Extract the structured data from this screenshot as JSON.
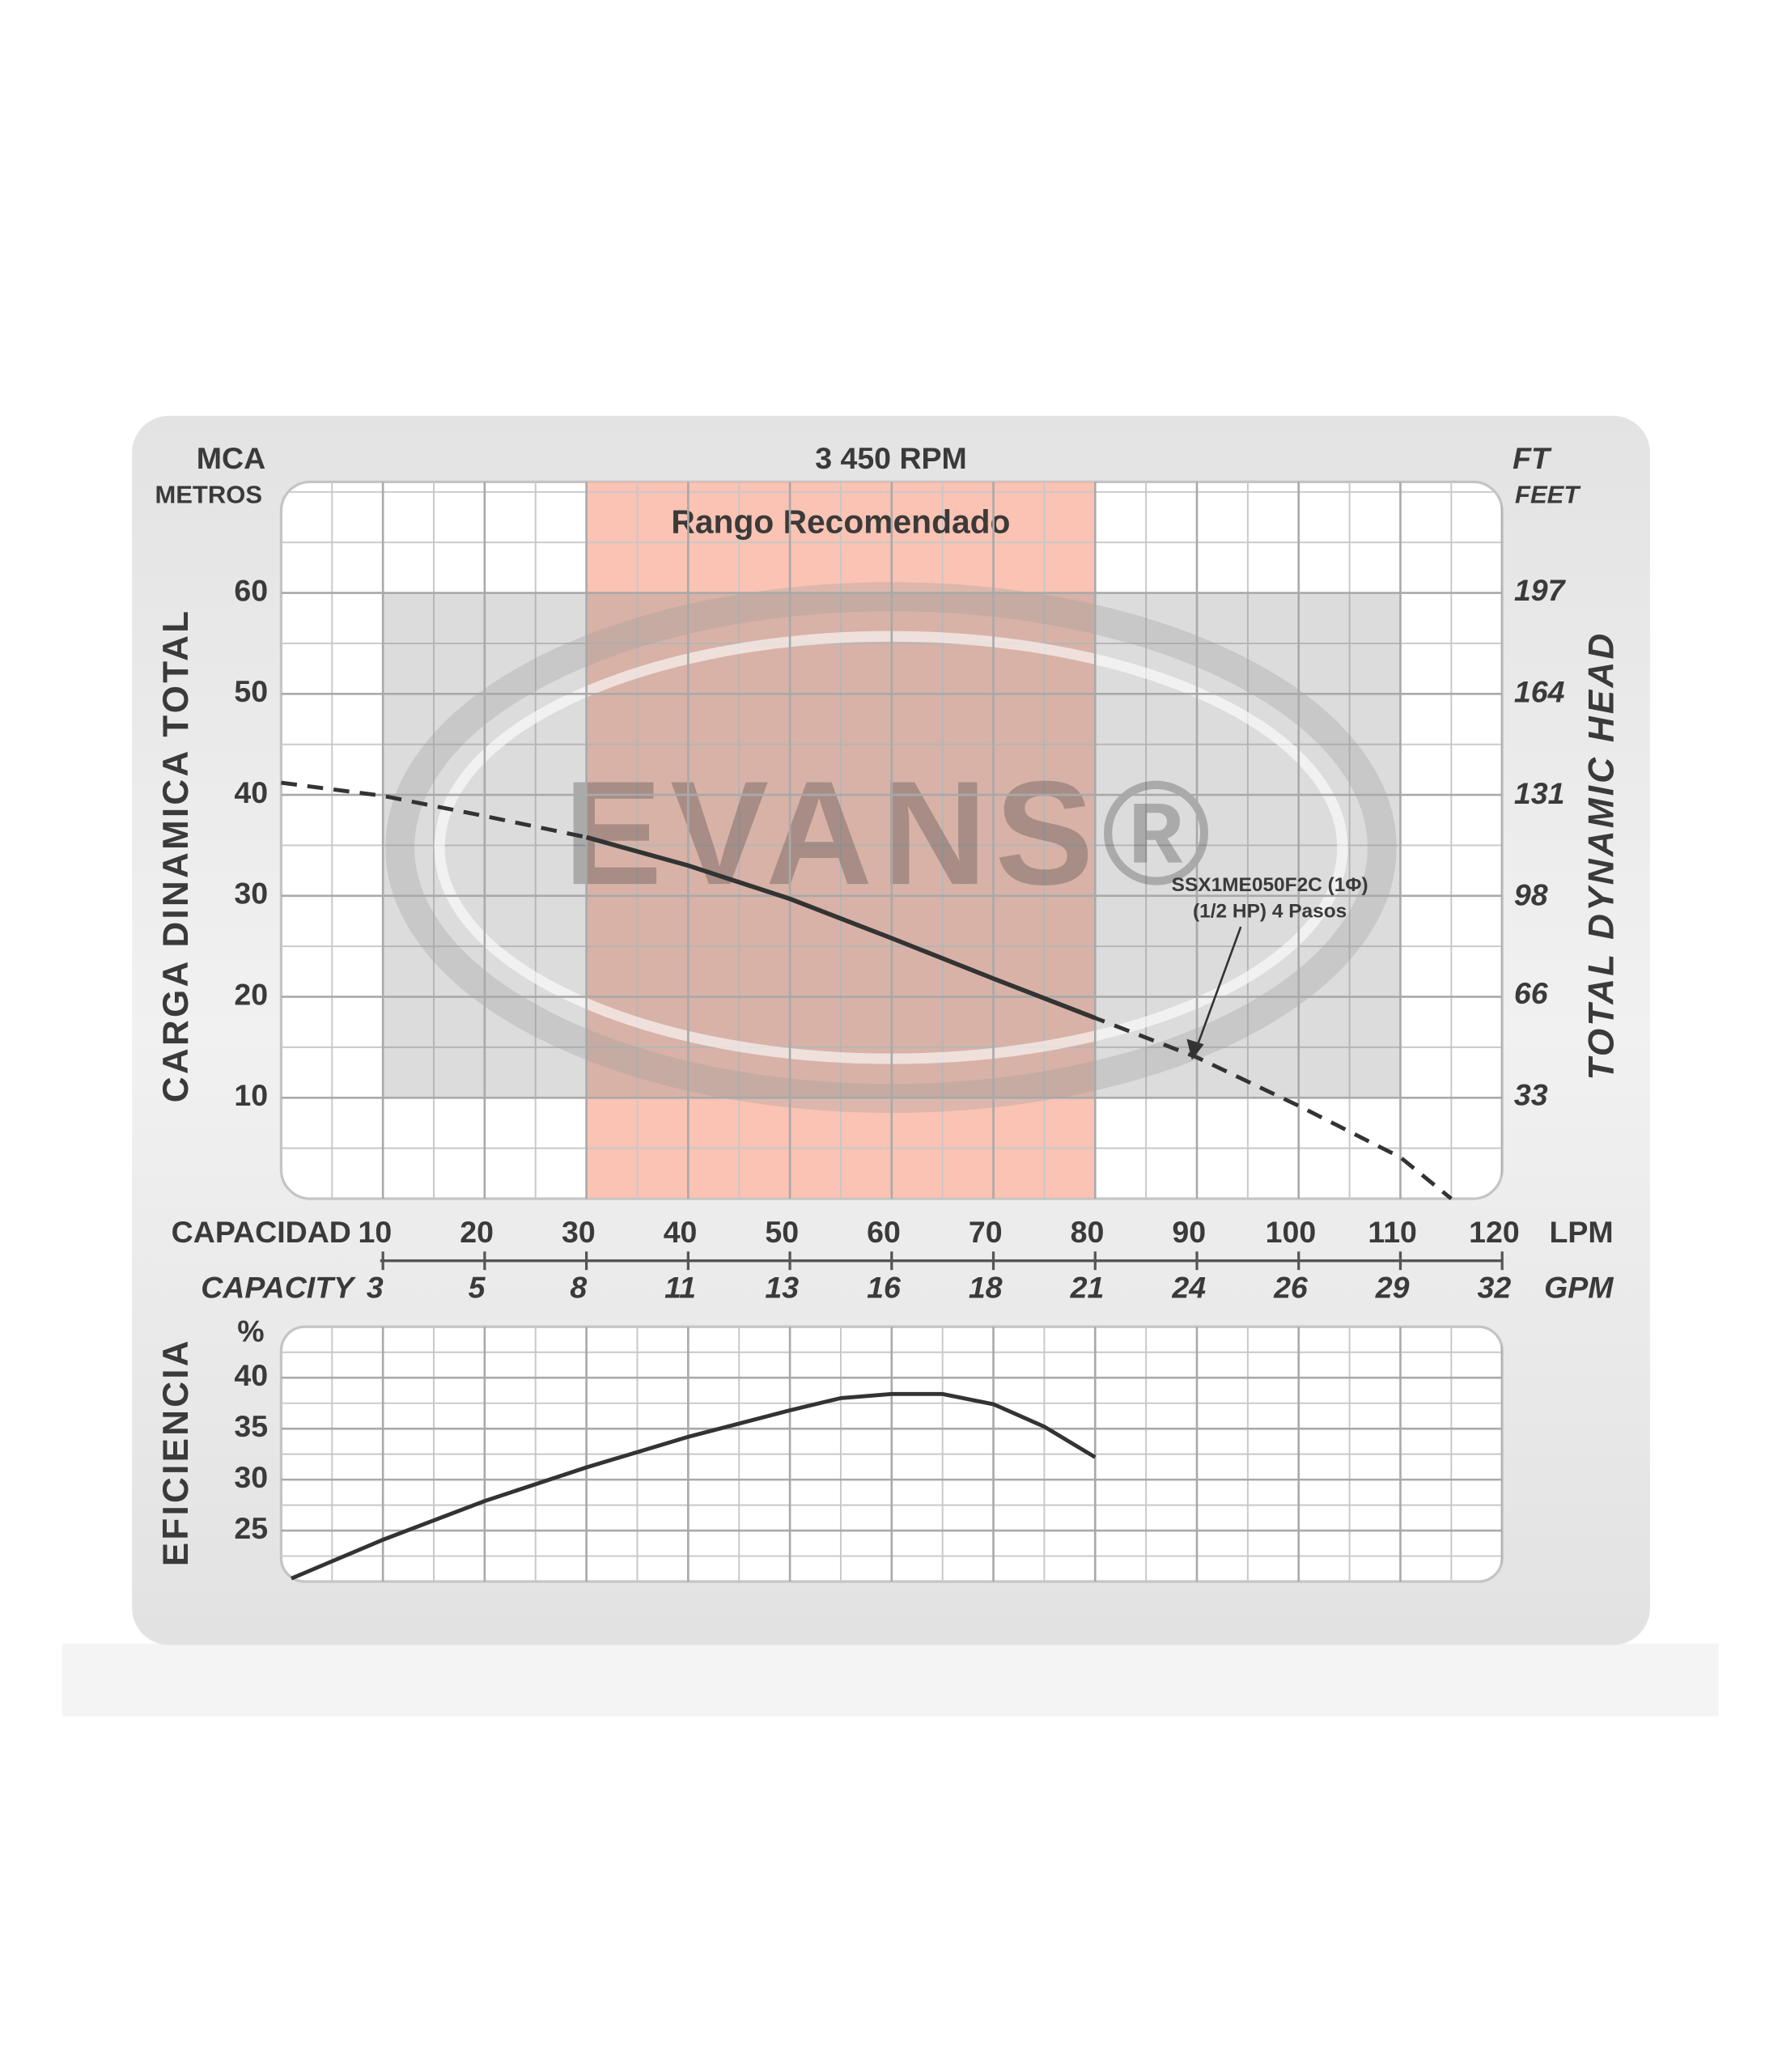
{
  "chart_data": [
    {
      "type": "line",
      "title": "3 450 RPM",
      "y_unit": "MCA",
      "y_unit_sub": "METROS",
      "y_label": "CARGA DINAMICA TOTAL",
      "y2_unit": "FT",
      "y2_unit_sub": "FEET",
      "y2_label": "TOTAL DYNAMIC HEAD",
      "x_label": "CAPACIDAD",
      "x_unit": "LPM",
      "x2_label": "CAPACITY",
      "x2_unit": "GPM",
      "xlim": [
        0,
        120
      ],
      "xticks": [
        10,
        20,
        30,
        40,
        50,
        60,
        70,
        80,
        90,
        100,
        110,
        120
      ],
      "x2ticks": [
        {
          "value": 10,
          "label": "3"
        },
        {
          "value": 20,
          "label": "5"
        },
        {
          "value": 30,
          "label": "8"
        },
        {
          "value": 40,
          "label": "11"
        },
        {
          "value": 50,
          "label": "13"
        },
        {
          "value": 60,
          "label": "16"
        },
        {
          "value": 70,
          "label": "18"
        },
        {
          "value": 80,
          "label": "21"
        },
        {
          "value": 90,
          "label": "24"
        },
        {
          "value": 100,
          "label": "26"
        },
        {
          "value": 110,
          "label": "29"
        },
        {
          "value": 120,
          "label": "32"
        }
      ],
      "ylim": [
        0,
        71
      ],
      "yticks": [
        10,
        20,
        30,
        40,
        50,
        60
      ],
      "y2lim": [
        0,
        233
      ],
      "y2ticks": [
        33,
        66,
        98,
        131,
        164,
        197
      ],
      "grid": true,
      "highlight": {
        "range": [
          30,
          80
        ],
        "label": "Rango Recomendado",
        "color": "#f9b9a6"
      },
      "watermark": "EVANS®",
      "x": [
        0,
        10,
        20,
        30,
        40,
        50,
        60,
        70,
        80,
        90,
        100,
        110,
        115
      ],
      "series": [
        {
          "name": "SSX1ME050F2C (1Φ)",
          "subtitle": "(1/2 HP)  4 Pasos",
          "color": "#333333",
          "values": [
            41.2,
            39.9,
            37.9,
            35.8,
            33,
            29.7,
            25.8,
            21.8,
            17.9,
            14,
            9.2,
            4.1,
            0
          ]
        }
      ]
    },
    {
      "type": "line",
      "y_unit": "%",
      "y_label": "EFICIENCIA",
      "xlim": [
        0,
        120
      ],
      "ylim": [
        20,
        45
      ],
      "yticks": [
        25,
        30,
        35,
        40
      ],
      "grid": true,
      "x": [
        1,
        10,
        20,
        30,
        40,
        50,
        55,
        60,
        65,
        70,
        75,
        80
      ],
      "series": [
        {
          "color": "#333333",
          "values": [
            20.3,
            24.1,
            27.9,
            31.2,
            34.2,
            36.8,
            38,
            38.4,
            38.4,
            37.4,
            35.2,
            32.2
          ]
        }
      ]
    }
  ]
}
